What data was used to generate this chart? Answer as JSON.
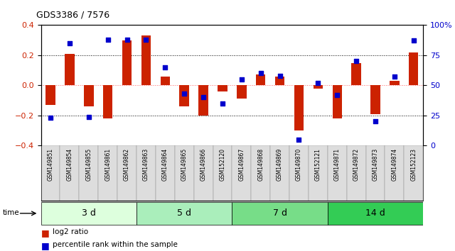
{
  "title": "GDS3386 / 7576",
  "samples": [
    "GSM149851",
    "GSM149854",
    "GSM149855",
    "GSM149861",
    "GSM149862",
    "GSM149863",
    "GSM149864",
    "GSM149865",
    "GSM149866",
    "GSM152120",
    "GSM149867",
    "GSM149868",
    "GSM149869",
    "GSM149870",
    "GSM152121",
    "GSM149871",
    "GSM149872",
    "GSM149873",
    "GSM149874",
    "GSM152123"
  ],
  "log2_ratio": [
    -0.13,
    0.21,
    -0.14,
    -0.22,
    0.3,
    0.33,
    0.06,
    -0.14,
    -0.2,
    -0.04,
    -0.09,
    0.07,
    0.06,
    -0.3,
    -0.02,
    -0.22,
    0.15,
    -0.19,
    0.03,
    0.22
  ],
  "percentile": [
    23,
    85,
    24,
    88,
    88,
    88,
    65,
    43,
    40,
    35,
    55,
    60,
    58,
    5,
    52,
    42,
    70,
    20,
    57,
    87
  ],
  "groups": [
    {
      "label": "3 d",
      "start": 0,
      "end": 5,
      "color": "#ddffdd"
    },
    {
      "label": "5 d",
      "start": 5,
      "end": 10,
      "color": "#aaeebb"
    },
    {
      "label": "7 d",
      "start": 10,
      "end": 15,
      "color": "#77dd88"
    },
    {
      "label": "14 d",
      "start": 15,
      "end": 20,
      "color": "#33cc55"
    }
  ],
  "bar_color": "#cc2200",
  "dot_color": "#0000cc",
  "ylim_left": [
    -0.4,
    0.4
  ],
  "ylim_right": [
    0,
    100
  ],
  "yticks_left": [
    -0.4,
    -0.2,
    0.0,
    0.2,
    0.4
  ],
  "yticks_right": [
    0,
    25,
    50,
    75,
    100
  ],
  "hlines_dotted": [
    0.2,
    -0.2
  ],
  "hline_zero_color": "#ff6666",
  "background_color": "#ffffff"
}
